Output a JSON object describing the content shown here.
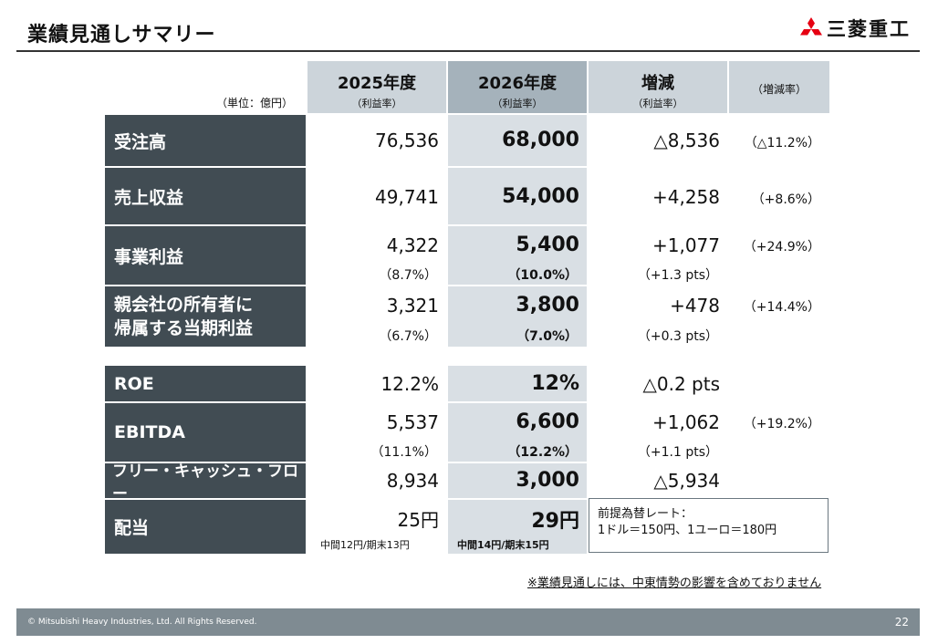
{
  "page": {
    "title": "業績見通しサマリー",
    "logo_name": "三菱重工",
    "unit": "（単位：億円）",
    "footnote": "※業績見通しには、中東情勢の影響を含めておりません",
    "footer_copyright": "© Mitsubishi Heavy Industries, Ltd.  All Rights Reserved.",
    "page_number": "22"
  },
  "columns": {
    "y2025": "2025年度",
    "y2025_sub": "（利益率）",
    "y2026": "2026年度",
    "y2026_sub": "（利益率）",
    "diff": "増減",
    "diff_sub": "（利益率）",
    "rate": "（増減率）"
  },
  "rows": {
    "orders": {
      "label": "受注高",
      "v25": "76,536",
      "v26": "68,000",
      "diff": "△8,536",
      "rate": "（△11.2%）"
    },
    "revenue": {
      "label": "売上収益",
      "v25": "49,741",
      "v26": "54,000",
      "diff": "+4,258",
      "rate": "（+8.6%）"
    },
    "bizprofit": {
      "label": "事業利益",
      "v25": "4,322",
      "m25": "（8.7%）",
      "v26": "5,400",
      "m26": "（10.0%）",
      "diff": "+1,077",
      "mdiff": "（+1.3 pts）",
      "rate": "（+24.9%）"
    },
    "netprofit": {
      "label1": "親会社の所有者に",
      "label2": "帰属する当期利益",
      "v25": "3,321",
      "m25": "（6.7%）",
      "v26": "3,800",
      "m26": "（7.0%）",
      "diff": "+478",
      "mdiff": "（+0.3 pts）",
      "rate": "（+14.4%）"
    },
    "roe": {
      "label": "ROE",
      "v25": "12.2%",
      "v26": "12%",
      "diff": "△0.2 pts"
    },
    "ebitda": {
      "label": "EBITDA",
      "v25": "5,537",
      "m25": "（11.1%）",
      "v26": "6,600",
      "m26": "（12.2%）",
      "diff": "+1,062",
      "mdiff": "（+1.1 pts）",
      "rate": "（+19.2%）"
    },
    "fcf": {
      "label": "フリー・キャッシュ・フロー",
      "v25": "8,934",
      "v26": "3,000",
      "diff": "△5,934"
    },
    "dividend": {
      "label": "配当",
      "v25": "25円",
      "d25": "中間12円/期末13円",
      "v26": "29円",
      "d26": "中間14円/期末15円"
    }
  },
  "fx_note": {
    "line1": "前提為替レート：",
    "line2": "1ドル＝150円、1ユーロ＝180円"
  },
  "colors": {
    "label_bg": "#414c53",
    "header_bg": "#ccd4da",
    "header_dark_bg": "#a5b2bb",
    "col2026_bg": "#d9dfe4",
    "footer_bg": "#7f8b92",
    "logo_red": "#e60012"
  }
}
